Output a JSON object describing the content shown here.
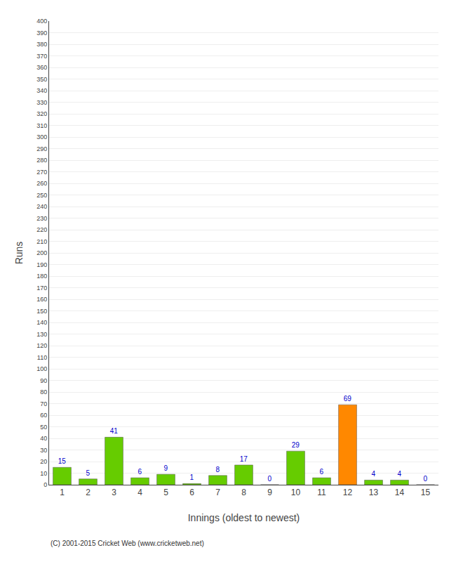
{
  "chart_data": {
    "type": "bar",
    "xlabel": "Innings (oldest to newest)",
    "ylabel": "Runs",
    "categories": [
      1,
      2,
      3,
      4,
      5,
      6,
      7,
      8,
      9,
      10,
      11,
      12,
      13,
      14,
      15
    ],
    "values": [
      15,
      5,
      41,
      6,
      9,
      1,
      8,
      17,
      0,
      29,
      6,
      69,
      4,
      4,
      0
    ],
    "colors": [
      "#66cc00",
      "#66cc00",
      "#66cc00",
      "#66cc00",
      "#66cc00",
      "#66cc00",
      "#66cc00",
      "#66cc00",
      "#66cc00",
      "#66cc00",
      "#66cc00",
      "#ff8800",
      "#66cc00",
      "#66cc00",
      "#66cc00"
    ],
    "ylim": [
      0,
      400
    ],
    "yticks": [
      0,
      10,
      20,
      30,
      40,
      50,
      60,
      70,
      80,
      90,
      100,
      110,
      120,
      130,
      140,
      150,
      160,
      170,
      180,
      190,
      200,
      210,
      220,
      230,
      240,
      250,
      260,
      270,
      280,
      290,
      300,
      310,
      320,
      330,
      340,
      350,
      360,
      370,
      380,
      390,
      400
    ],
    "grid": true,
    "data_labels": true,
    "annotations": [
      "(C) 2001-2015 Cricket Web (www.cricketweb.net)"
    ]
  }
}
